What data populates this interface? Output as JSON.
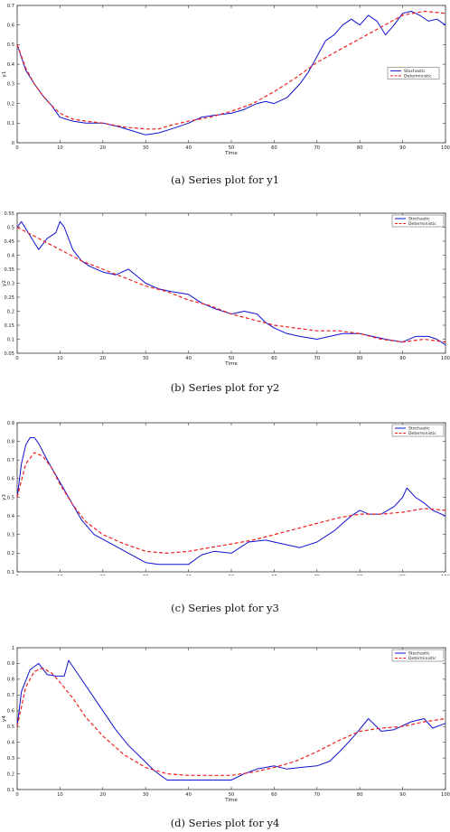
{
  "figure": {
    "captions": [
      "(a) Series plot for y1",
      "(b) Series plot for y2",
      "(c) Series plot for y3",
      "(d) Series plot for y4"
    ]
  },
  "colors": {
    "stochastic": "#1010d0",
    "deterministic": "#ee2020"
  },
  "chart_data": [
    {
      "type": "line",
      "xlabel": "Time",
      "ylabel": "y1",
      "xlim": [
        0,
        100
      ],
      "ylim": [
        0,
        0.7
      ],
      "xticks": [
        "0",
        "10",
        "20",
        "30",
        "40",
        "50",
        "60",
        "70",
        "80",
        "90",
        "100"
      ],
      "yticks": [
        "0",
        "0.1",
        "0.2",
        "0.3",
        "0.4",
        "0.5",
        "0.6",
        "0.7"
      ],
      "legend": "right",
      "series": [
        {
          "name": "Stochastic",
          "style": "solid",
          "x": [
            0,
            2,
            4,
            6,
            8,
            10,
            13,
            16,
            20,
            24,
            27,
            30,
            33,
            36,
            40,
            43,
            46,
            50,
            53,
            56,
            58,
            60,
            63,
            66,
            68,
            70,
            72,
            74,
            76,
            78,
            80,
            82,
            84,
            86,
            88,
            90,
            92,
            94,
            96,
            98,
            100
          ],
          "y": [
            0.5,
            0.37,
            0.3,
            0.24,
            0.19,
            0.13,
            0.11,
            0.1,
            0.1,
            0.08,
            0.06,
            0.04,
            0.05,
            0.07,
            0.1,
            0.13,
            0.14,
            0.15,
            0.17,
            0.2,
            0.21,
            0.2,
            0.23,
            0.3,
            0.36,
            0.44,
            0.52,
            0.55,
            0.6,
            0.63,
            0.6,
            0.65,
            0.62,
            0.55,
            0.6,
            0.66,
            0.67,
            0.65,
            0.62,
            0.63,
            0.6
          ]
        },
        {
          "name": "Deterministic",
          "style": "dashed",
          "x": [
            0,
            2,
            4,
            6,
            8,
            10,
            13,
            16,
            20,
            25,
            30,
            33,
            36,
            40,
            45,
            50,
            55,
            60,
            65,
            70,
            75,
            80,
            85,
            90,
            95,
            100
          ],
          "y": [
            0.5,
            0.38,
            0.3,
            0.24,
            0.19,
            0.15,
            0.12,
            0.11,
            0.1,
            0.08,
            0.07,
            0.07,
            0.09,
            0.11,
            0.13,
            0.16,
            0.2,
            0.26,
            0.33,
            0.41,
            0.47,
            0.53,
            0.59,
            0.65,
            0.67,
            0.66
          ]
        }
      ]
    },
    {
      "type": "line",
      "xlabel": "Time",
      "ylabel": "y2",
      "xlim": [
        0,
        100
      ],
      "ylim": [
        0.05,
        0.55
      ],
      "xticks": [
        "0",
        "10",
        "20",
        "30",
        "40",
        "50",
        "60",
        "70",
        "80",
        "90",
        "100"
      ],
      "yticks": [
        "0.05",
        "0.1",
        "0.15",
        "0.2",
        "0.25",
        "0.3",
        "0.35",
        "0.4",
        "0.45",
        "0.5",
        "0.55"
      ],
      "legend": "top-right",
      "series": [
        {
          "name": "Stochastic",
          "style": "solid",
          "x": [
            0,
            1,
            3,
            5,
            7,
            9,
            10,
            11,
            13,
            15,
            17,
            20,
            23,
            26,
            30,
            33,
            36,
            40,
            43,
            46,
            50,
            53,
            56,
            58,
            60,
            63,
            66,
            70,
            73,
            76,
            80,
            83,
            86,
            90,
            93,
            96,
            98,
            100
          ],
          "y": [
            0.5,
            0.52,
            0.47,
            0.42,
            0.46,
            0.48,
            0.52,
            0.5,
            0.42,
            0.38,
            0.36,
            0.34,
            0.33,
            0.35,
            0.3,
            0.28,
            0.27,
            0.26,
            0.23,
            0.21,
            0.19,
            0.2,
            0.19,
            0.16,
            0.14,
            0.12,
            0.11,
            0.1,
            0.11,
            0.12,
            0.12,
            0.11,
            0.1,
            0.09,
            0.11,
            0.11,
            0.1,
            0.08
          ]
        },
        {
          "name": "Deterministic",
          "style": "dashed",
          "x": [
            0,
            5,
            10,
            15,
            20,
            25,
            30,
            35,
            40,
            45,
            50,
            55,
            60,
            65,
            70,
            75,
            80,
            85,
            90,
            95,
            100
          ],
          "y": [
            0.5,
            0.46,
            0.42,
            0.38,
            0.35,
            0.32,
            0.29,
            0.27,
            0.24,
            0.22,
            0.19,
            0.17,
            0.15,
            0.14,
            0.13,
            0.13,
            0.12,
            0.1,
            0.09,
            0.1,
            0.09
          ]
        }
      ]
    },
    {
      "type": "line",
      "xlabel": "Time",
      "ylabel": "y3",
      "xlim": [
        0,
        100
      ],
      "ylim": [
        0.1,
        0.9
      ],
      "xticks": [
        "0",
        "10",
        "20",
        "30",
        "40",
        "50",
        "60",
        "70",
        "80",
        "90",
        "100"
      ],
      "yticks": [
        "0.1",
        "0.2",
        "0.3",
        "0.4",
        "0.5",
        "0.6",
        "0.7",
        "0.8",
        "0.9"
      ],
      "legend": "top-right",
      "series": [
        {
          "name": "Stochastic",
          "style": "solid",
          "x": [
            0,
            1,
            2,
            3,
            4,
            5,
            7,
            9,
            12,
            15,
            18,
            22,
            26,
            30,
            33,
            36,
            40,
            43,
            46,
            50,
            54,
            58,
            62,
            66,
            70,
            74,
            78,
            80,
            82,
            85,
            88,
            90,
            91,
            93,
            95,
            97,
            100
          ],
          "y": [
            0.5,
            0.68,
            0.78,
            0.82,
            0.82,
            0.79,
            0.7,
            0.62,
            0.5,
            0.38,
            0.3,
            0.25,
            0.2,
            0.15,
            0.14,
            0.14,
            0.14,
            0.19,
            0.21,
            0.2,
            0.26,
            0.27,
            0.25,
            0.23,
            0.26,
            0.32,
            0.4,
            0.43,
            0.41,
            0.41,
            0.45,
            0.5,
            0.55,
            0.5,
            0.47,
            0.43,
            0.4
          ]
        },
        {
          "name": "Deterministic",
          "style": "dashed",
          "x": [
            0,
            2,
            4,
            6,
            8,
            10,
            13,
            16,
            20,
            25,
            30,
            35,
            40,
            45,
            50,
            55,
            60,
            65,
            70,
            75,
            80,
            85,
            90,
            95,
            100
          ],
          "y": [
            0.5,
            0.68,
            0.74,
            0.72,
            0.66,
            0.57,
            0.46,
            0.37,
            0.3,
            0.25,
            0.21,
            0.2,
            0.21,
            0.23,
            0.25,
            0.27,
            0.3,
            0.33,
            0.36,
            0.39,
            0.41,
            0.41,
            0.42,
            0.44,
            0.43
          ]
        }
      ]
    },
    {
      "type": "line",
      "xlabel": "Time",
      "ylabel": "y4",
      "xlim": [
        0,
        100
      ],
      "ylim": [
        0.1,
        1
      ],
      "xticks": [
        "0",
        "10",
        "20",
        "30",
        "40",
        "50",
        "60",
        "70",
        "80",
        "90",
        "100"
      ],
      "yticks": [
        "0.1",
        "0.2",
        "0.3",
        "0.4",
        "0.5",
        "0.6",
        "0.7",
        "0.8",
        "0.9",
        "1"
      ],
      "legend": "top-right",
      "series": [
        {
          "name": "Stochastic",
          "style": "solid",
          "x": [
            0,
            1,
            3,
            5,
            7,
            9,
            11,
            12,
            13,
            15,
            17,
            20,
            23,
            26,
            29,
            32,
            35,
            40,
            45,
            50,
            53,
            56,
            60,
            63,
            66,
            70,
            73,
            76,
            79,
            82,
            85,
            88,
            92,
            95,
            97,
            100
          ],
          "y": [
            0.5,
            0.72,
            0.86,
            0.9,
            0.83,
            0.82,
            0.82,
            0.92,
            0.88,
            0.8,
            0.72,
            0.6,
            0.48,
            0.38,
            0.3,
            0.22,
            0.16,
            0.16,
            0.16,
            0.16,
            0.2,
            0.23,
            0.25,
            0.23,
            0.24,
            0.25,
            0.28,
            0.36,
            0.45,
            0.55,
            0.47,
            0.48,
            0.53,
            0.55,
            0.49,
            0.52
          ]
        },
        {
          "name": "Deterministic",
          "style": "dashed",
          "x": [
            0,
            2,
            4,
            6,
            8,
            10,
            13,
            16,
            20,
            25,
            30,
            35,
            40,
            45,
            50,
            55,
            60,
            65,
            70,
            75,
            80,
            85,
            90,
            95,
            100
          ],
          "y": [
            0.5,
            0.75,
            0.85,
            0.87,
            0.84,
            0.78,
            0.68,
            0.56,
            0.44,
            0.32,
            0.24,
            0.2,
            0.19,
            0.19,
            0.19,
            0.21,
            0.24,
            0.28,
            0.34,
            0.41,
            0.47,
            0.49,
            0.5,
            0.53,
            0.55
          ]
        }
      ]
    }
  ]
}
